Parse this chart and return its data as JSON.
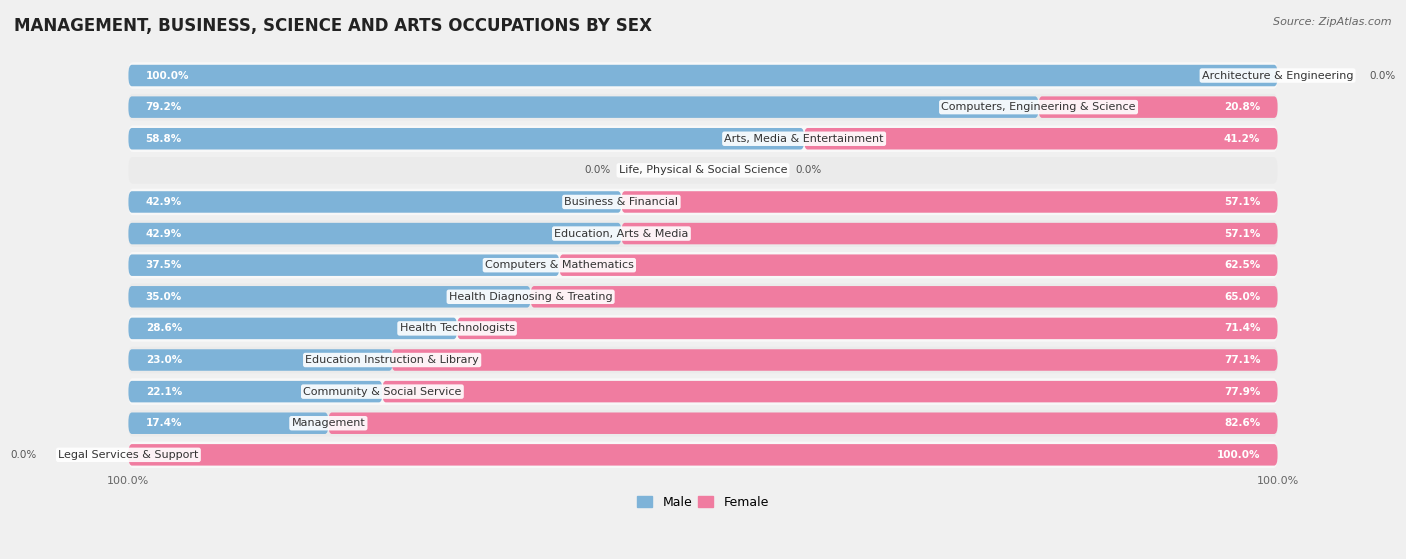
{
  "title": "MANAGEMENT, BUSINESS, SCIENCE AND ARTS OCCUPATIONS BY SEX",
  "source": "Source: ZipAtlas.com",
  "categories": [
    "Architecture & Engineering",
    "Computers, Engineering & Science",
    "Arts, Media & Entertainment",
    "Life, Physical & Social Science",
    "Business & Financial",
    "Education, Arts & Media",
    "Computers & Mathematics",
    "Health Diagnosing & Treating",
    "Health Technologists",
    "Education Instruction & Library",
    "Community & Social Service",
    "Management",
    "Legal Services & Support"
  ],
  "male": [
    100.0,
    79.2,
    58.8,
    0.0,
    42.9,
    42.9,
    37.5,
    35.0,
    28.6,
    23.0,
    22.1,
    17.4,
    0.0
  ],
  "female": [
    0.0,
    20.8,
    41.2,
    0.0,
    57.1,
    57.1,
    62.5,
    65.0,
    71.4,
    77.1,
    77.9,
    82.6,
    100.0
  ],
  "male_color": "#7eb3d8",
  "female_color": "#f07ca0",
  "background_color": "#f0f0f0",
  "row_bg_even": "#f8f8f8",
  "row_bg_odd": "#ebebeb",
  "title_fontsize": 12,
  "label_fontsize": 8.0,
  "value_fontsize": 7.5,
  "legend_fontsize": 9,
  "source_fontsize": 8
}
